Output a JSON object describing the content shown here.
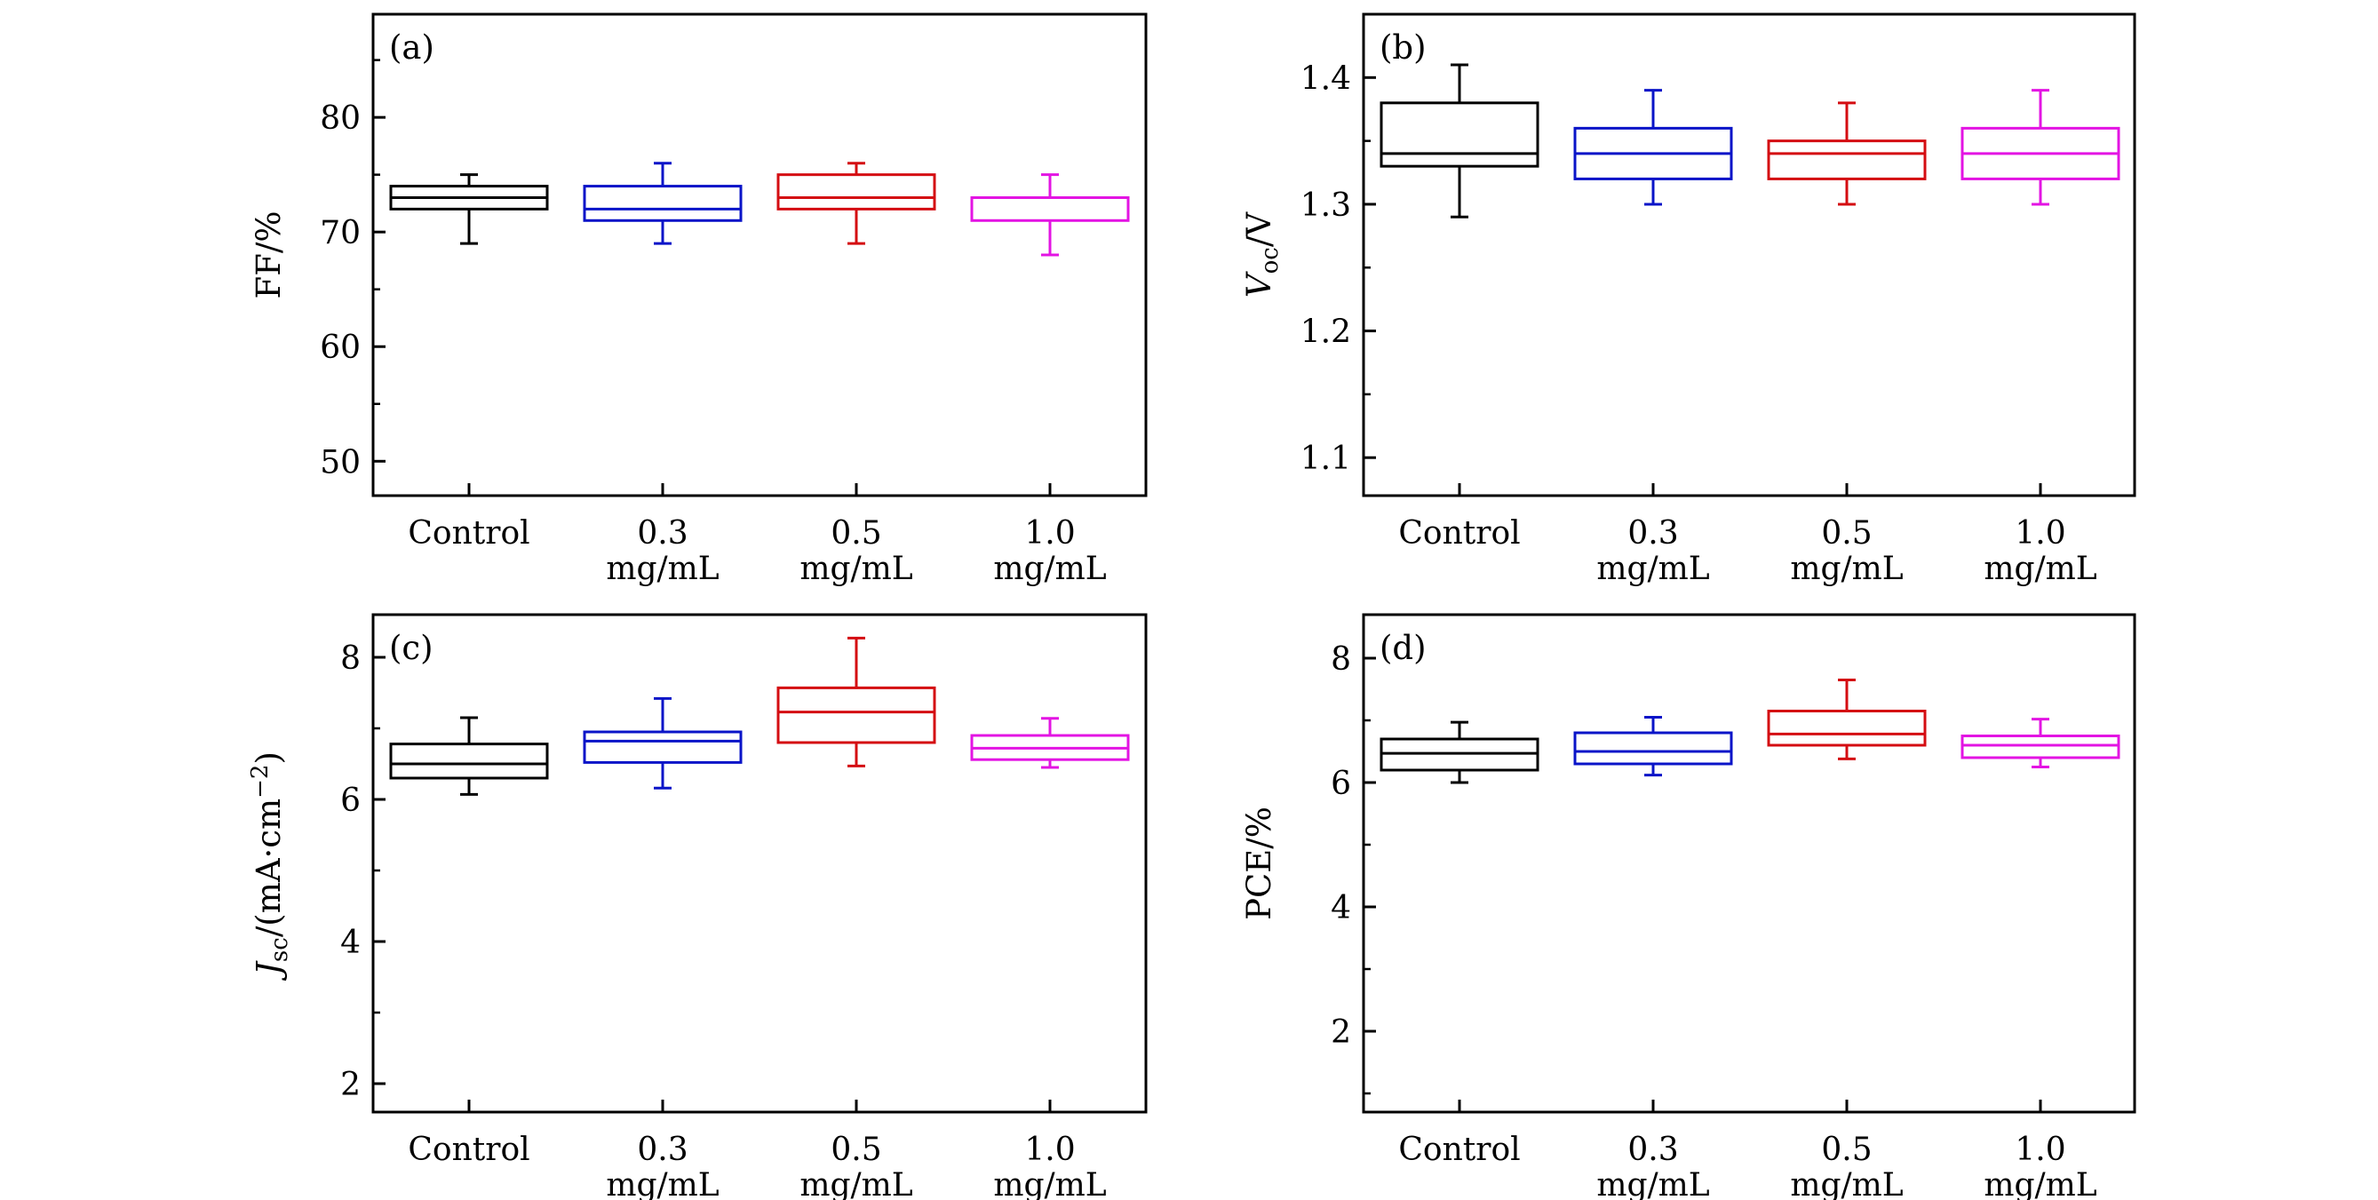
{
  "chart_data": [
    {
      "type": "box",
      "panel": "(a)",
      "ylabel": {
        "main": "FF/%",
        "sub": "",
        "rest": ""
      },
      "ylim": [
        47,
        89
      ],
      "yticks": [
        50,
        60,
        70,
        80
      ],
      "yminor_step": 5,
      "categories": [
        {
          "line1": "Control",
          "line2": ""
        },
        {
          "line1": "0.3",
          "line2": "mg/mL"
        },
        {
          "line1": "0.5",
          "line2": "mg/mL"
        },
        {
          "line1": "1.0",
          "line2": "mg/mL"
        }
      ],
      "colors": [
        "#000000",
        "#0a14c8",
        "#d40d12",
        "#e314e3"
      ],
      "boxes": [
        {
          "whisker_low": 69,
          "q1": 72,
          "median": 73,
          "q3": 74,
          "whisker_high": 75
        },
        {
          "whisker_low": 69,
          "q1": 71,
          "median": 72,
          "q3": 74,
          "whisker_high": 76
        },
        {
          "whisker_low": 69,
          "q1": 72,
          "median": 73,
          "q3": 75,
          "whisker_high": 76
        },
        {
          "whisker_low": 68,
          "q1": 71,
          "median": 73,
          "q3": 73,
          "whisker_high": 75
        }
      ]
    },
    {
      "type": "box",
      "panel": "(b)",
      "ylabel": {
        "main": "V",
        "sub": "oc",
        "rest": "/V"
      },
      "ylim": [
        1.07,
        1.45
      ],
      "yticks": [
        1.1,
        1.2,
        1.3,
        1.4
      ],
      "yminor_step": 0.05,
      "categories": [
        {
          "line1": "Control",
          "line2": ""
        },
        {
          "line1": "0.3",
          "line2": "mg/mL"
        },
        {
          "line1": "0.5",
          "line2": "mg/mL"
        },
        {
          "line1": "1.0",
          "line2": "mg/mL"
        }
      ],
      "colors": [
        "#000000",
        "#0a14c8",
        "#d40d12",
        "#e314e3"
      ],
      "boxes": [
        {
          "whisker_low": 1.29,
          "q1": 1.33,
          "median": 1.34,
          "q3": 1.38,
          "whisker_high": 1.41
        },
        {
          "whisker_low": 1.3,
          "q1": 1.32,
          "median": 1.34,
          "q3": 1.36,
          "whisker_high": 1.39
        },
        {
          "whisker_low": 1.3,
          "q1": 1.32,
          "median": 1.34,
          "q3": 1.35,
          "whisker_high": 1.38
        },
        {
          "whisker_low": 1.3,
          "q1": 1.32,
          "median": 1.34,
          "q3": 1.36,
          "whisker_high": 1.39
        }
      ]
    },
    {
      "type": "box",
      "panel": "(c)",
      "ylabel": {
        "main": "J",
        "sub": "sc",
        "rest": "/(mA·cm",
        "sup": "−2",
        "tail": ")"
      },
      "ylim": [
        1.6,
        8.6
      ],
      "yticks": [
        2,
        4,
        6,
        8
      ],
      "yminor_step": 1,
      "categories": [
        {
          "line1": "Control",
          "line2": ""
        },
        {
          "line1": "0.3",
          "line2": "mg/mL"
        },
        {
          "line1": "0.5",
          "line2": "mg/mL"
        },
        {
          "line1": "1.0",
          "line2": "mg/mL"
        }
      ],
      "colors": [
        "#000000",
        "#0a14c8",
        "#d40d12",
        "#e314e3"
      ],
      "boxes": [
        {
          "whisker_low": 6.07,
          "q1": 6.3,
          "median": 6.5,
          "q3": 6.78,
          "whisker_high": 7.15
        },
        {
          "whisker_low": 6.16,
          "q1": 6.52,
          "median": 6.82,
          "q3": 6.95,
          "whisker_high": 7.42
        },
        {
          "whisker_low": 6.47,
          "q1": 6.8,
          "median": 7.23,
          "q3": 7.57,
          "whisker_high": 8.27
        },
        {
          "whisker_low": 6.45,
          "q1": 6.56,
          "median": 6.72,
          "q3": 6.9,
          "whisker_high": 7.14
        }
      ]
    },
    {
      "type": "box",
      "panel": "(d)",
      "ylabel": {
        "main": "PCE/%",
        "sub": "",
        "rest": ""
      },
      "ylim": [
        0.7,
        8.7
      ],
      "yticks": [
        2,
        4,
        6,
        8
      ],
      "yminor_step": 1,
      "categories": [
        {
          "line1": "Control",
          "line2": ""
        },
        {
          "line1": "0.3",
          "line2": "mg/mL"
        },
        {
          "line1": "0.5",
          "line2": "mg/mL"
        },
        {
          "line1": "1.0",
          "line2": "mg/mL"
        }
      ],
      "colors": [
        "#000000",
        "#0a14c8",
        "#d40d12",
        "#e314e3"
      ],
      "boxes": [
        {
          "whisker_low": 6.0,
          "q1": 6.2,
          "median": 6.47,
          "q3": 6.7,
          "whisker_high": 6.97
        },
        {
          "whisker_low": 6.12,
          "q1": 6.3,
          "median": 6.5,
          "q3": 6.8,
          "whisker_high": 7.05
        },
        {
          "whisker_low": 6.38,
          "q1": 6.6,
          "median": 6.78,
          "q3": 7.15,
          "whisker_high": 7.65
        },
        {
          "whisker_low": 6.25,
          "q1": 6.4,
          "median": 6.6,
          "q3": 6.75,
          "whisker_high": 7.02
        }
      ]
    }
  ]
}
